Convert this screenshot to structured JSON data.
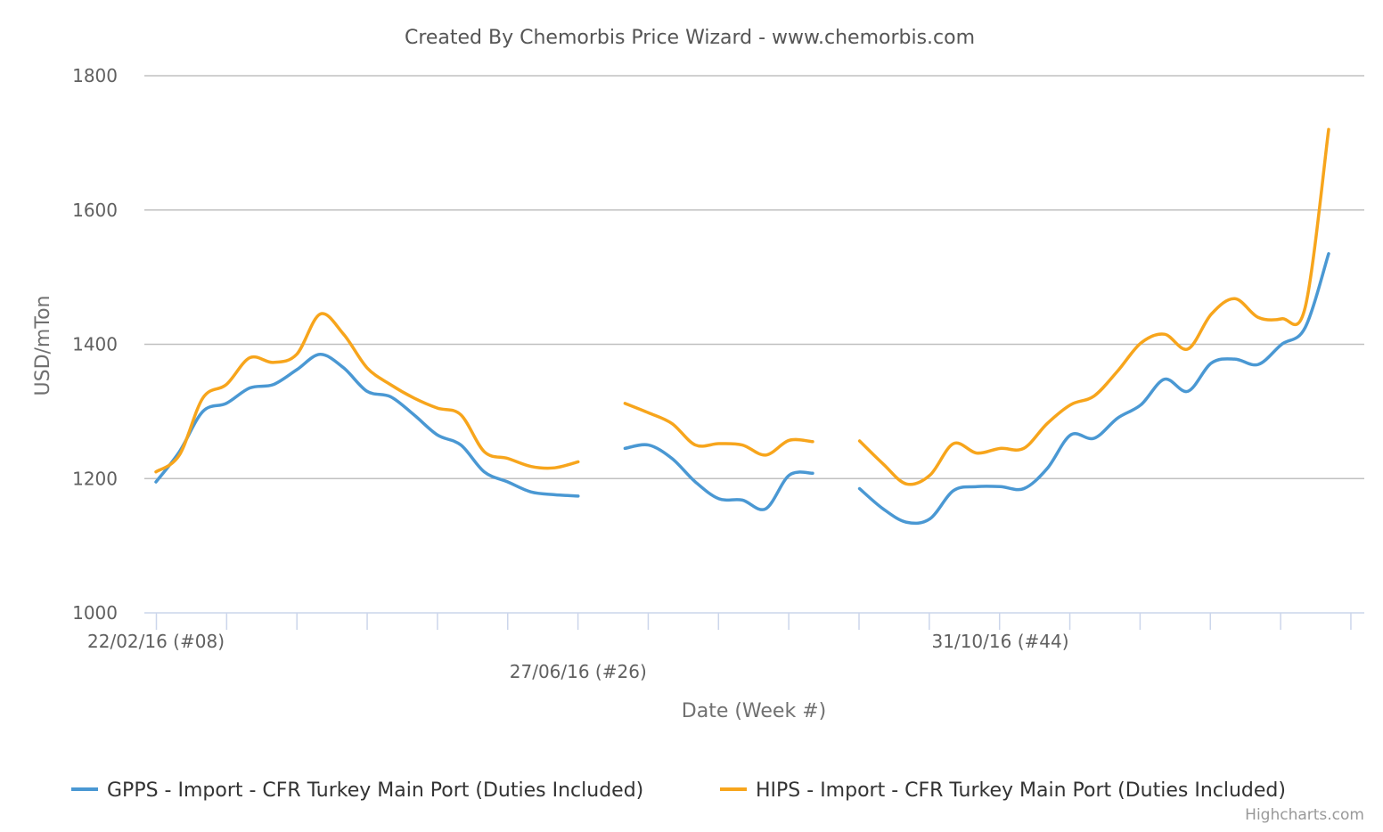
{
  "chart_data": {
    "type": "line",
    "title": "Created By Chemorbis Price Wizard - www.chemorbis.com",
    "xlabel": "Date (Week #)",
    "ylabel": "USD/mTon",
    "ylim": [
      1000,
      1800
    ],
    "yticks": [
      1000,
      1200,
      1400,
      1600,
      1800
    ],
    "grid": true,
    "legend_position": "bottom",
    "credit": "Highcharts.com",
    "x_tick_labels": [
      {
        "week": 8,
        "label": "22/02/16 (#08)"
      },
      {
        "week": 26,
        "label": "27/06/16 (#26)"
      },
      {
        "week": 44,
        "label": "31/10/16 (#44)"
      }
    ],
    "x_range_weeks": [
      8,
      60
    ],
    "series": [
      {
        "name": "GPPS - Import - CFR Turkey Main Port (Duties Included)",
        "color": "#4a98d3",
        "segments": [
          [
            [
              8,
              1195
            ],
            [
              9,
              1240
            ],
            [
              10,
              1300
            ],
            [
              11,
              1312
            ],
            [
              12,
              1335
            ],
            [
              13,
              1340
            ],
            [
              14,
              1362
            ],
            [
              15,
              1385
            ],
            [
              16,
              1365
            ],
            [
              17,
              1330
            ],
            [
              18,
              1322
            ],
            [
              19,
              1295
            ],
            [
              20,
              1265
            ],
            [
              21,
              1250
            ],
            [
              22,
              1210
            ],
            [
              23,
              1195
            ],
            [
              24,
              1180
            ],
            [
              25,
              1176
            ],
            [
              26,
              1174
            ]
          ],
          [
            [
              28,
              1245
            ],
            [
              29,
              1250
            ],
            [
              30,
              1230
            ],
            [
              31,
              1195
            ],
            [
              32,
              1170
            ],
            [
              33,
              1168
            ],
            [
              34,
              1155
            ],
            [
              35,
              1205
            ],
            [
              36,
              1208
            ]
          ],
          [
            [
              38,
              1185
            ],
            [
              39,
              1155
            ],
            [
              40,
              1135
            ],
            [
              41,
              1140
            ],
            [
              42,
              1182
            ],
            [
              43,
              1188
            ],
            [
              44,
              1188
            ],
            [
              45,
              1185
            ],
            [
              46,
              1215
            ],
            [
              47,
              1265
            ],
            [
              48,
              1260
            ],
            [
              49,
              1290
            ],
            [
              50,
              1310
            ],
            [
              51,
              1348
            ],
            [
              52,
              1330
            ],
            [
              53,
              1372
            ],
            [
              54,
              1378
            ],
            [
              55,
              1370
            ],
            [
              56,
              1400
            ],
            [
              57,
              1425
            ],
            [
              58,
              1535
            ]
          ]
        ]
      },
      {
        "name": "HIPS - Import - CFR Turkey Main Port (Duties Included)",
        "color": "#f7a51c",
        "segments": [
          [
            [
              8,
              1210
            ],
            [
              9,
              1235
            ],
            [
              10,
              1320
            ],
            [
              11,
              1340
            ],
            [
              12,
              1380
            ],
            [
              13,
              1373
            ],
            [
              14,
              1385
            ],
            [
              15,
              1445
            ],
            [
              16,
              1415
            ],
            [
              17,
              1365
            ],
            [
              18,
              1340
            ],
            [
              19,
              1320
            ],
            [
              20,
              1305
            ],
            [
              21,
              1295
            ],
            [
              22,
              1240
            ],
            [
              23,
              1230
            ],
            [
              24,
              1218
            ],
            [
              25,
              1216
            ],
            [
              26,
              1225
            ]
          ],
          [
            [
              28,
              1312
            ],
            [
              29,
              1298
            ],
            [
              30,
              1282
            ],
            [
              31,
              1250
            ],
            [
              32,
              1252
            ],
            [
              33,
              1250
            ],
            [
              34,
              1235
            ],
            [
              35,
              1257
            ],
            [
              36,
              1255
            ]
          ],
          [
            [
              38,
              1256
            ],
            [
              39,
              1222
            ],
            [
              40,
              1192
            ],
            [
              41,
              1205
            ],
            [
              42,
              1252
            ],
            [
              43,
              1238
            ],
            [
              44,
              1245
            ],
            [
              45,
              1245
            ],
            [
              46,
              1282
            ],
            [
              47,
              1310
            ],
            [
              48,
              1323
            ],
            [
              49,
              1360
            ],
            [
              50,
              1402
            ],
            [
              51,
              1415
            ],
            [
              52,
              1393
            ],
            [
              53,
              1445
            ],
            [
              54,
              1468
            ],
            [
              55,
              1440
            ],
            [
              56,
              1438
            ],
            [
              57,
              1455
            ],
            [
              58,
              1720
            ]
          ]
        ]
      }
    ]
  }
}
